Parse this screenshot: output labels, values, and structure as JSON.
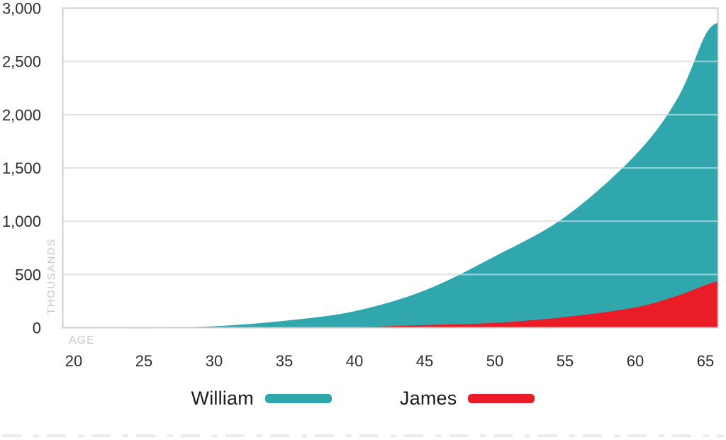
{
  "chart_data": {
    "type": "area",
    "title": "",
    "xlabel": "AGE",
    "ylabel": "THOUSANDS",
    "ylim": [
      0,
      3000
    ],
    "xlim": [
      20,
      66
    ],
    "grid": true,
    "legend_position": "bottom",
    "x_ticks": [
      20,
      25,
      30,
      35,
      40,
      45,
      50,
      55,
      60,
      65
    ],
    "y_ticks": [
      {
        "value": 0,
        "label": "0"
      },
      {
        "value": 500,
        "label": "500"
      },
      {
        "value": 1000,
        "label": "1,000"
      },
      {
        "value": 1500,
        "label": "1,500"
      },
      {
        "value": 2000,
        "label": "2,000"
      },
      {
        "value": 2500,
        "label": "2,500"
      },
      {
        "value": 3000,
        "label": "3,000"
      }
    ],
    "x": [
      20,
      25,
      30,
      35,
      40,
      45,
      50,
      55,
      60,
      63,
      65,
      66
    ],
    "series": [
      {
        "name": "William",
        "color": "#2fa7ac",
        "values": [
          0,
          2,
          13,
          65,
          155,
          350,
          670,
          1040,
          1620,
          2150,
          2750,
          2870
        ]
      },
      {
        "name": "James",
        "color": "#e91c27",
        "values": [
          0,
          0,
          0,
          0,
          5,
          25,
          45,
          100,
          190,
          300,
          400,
          440
        ]
      }
    ]
  },
  "colors": {
    "grid_line": "#c8c8c8",
    "plot_border": "#c3c3c3",
    "grid_overlay": "rgba(255,255,255,0.5)",
    "tick_text": "#2d2d2d",
    "muted_label": "#c9c9c9",
    "dash_divider": "#ececec",
    "background": "#ffffff"
  }
}
